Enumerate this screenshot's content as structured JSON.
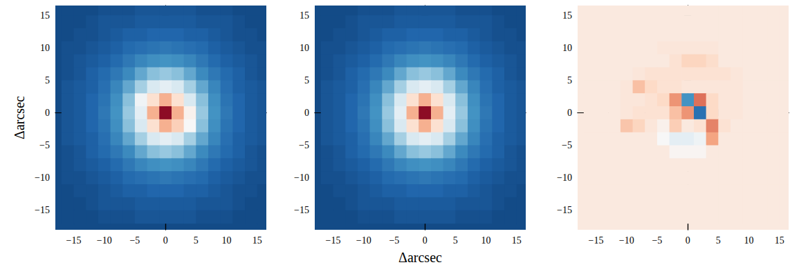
{
  "chart_data": [
    {
      "type": "heatmap",
      "ylabel": "Δarcsec",
      "xlim": [
        -18,
        16.5
      ],
      "ylim": [
        -18,
        16.5
      ],
      "xticks": [
        {
          "value": -15,
          "label": "−15"
        },
        {
          "value": -10,
          "label": "−10"
        },
        {
          "value": -5,
          "label": "−5"
        },
        0,
        5,
        10,
        15
      ],
      "yticks": [
        {
          "value": -15,
          "label": "−15"
        },
        {
          "value": -10,
          "label": "−10"
        },
        {
          "value": -5,
          "label": "−5"
        },
        0,
        5,
        10,
        15
      ],
      "color_range": [
        0,
        1
      ],
      "x": [
        -16,
        -14,
        -12,
        -10,
        -8,
        -6,
        -4,
        -2,
        0,
        2,
        4,
        6,
        8,
        10,
        12,
        14,
        16
      ],
      "y": [
        16,
        14,
        12,
        10,
        8,
        6,
        4,
        2,
        0,
        -2,
        -4,
        -6,
        -8,
        -10,
        -12,
        -14,
        -16
      ],
      "z": [
        [
          0.05,
          0.05,
          0.05,
          0.06,
          0.06,
          0.06,
          0.07,
          0.07,
          0.07,
          0.07,
          0.07,
          0.06,
          0.06,
          0.06,
          0.05,
          0.05,
          0.05
        ],
        [
          0.05,
          0.05,
          0.06,
          0.07,
          0.07,
          0.07,
          0.08,
          0.08,
          0.08,
          0.08,
          0.08,
          0.07,
          0.07,
          0.07,
          0.06,
          0.05,
          0.05
        ],
        [
          0.05,
          0.06,
          0.06,
          0.07,
          0.08,
          0.09,
          0.09,
          0.1,
          0.1,
          0.1,
          0.09,
          0.09,
          0.08,
          0.07,
          0.06,
          0.06,
          0.05
        ],
        [
          0.06,
          0.06,
          0.07,
          0.08,
          0.09,
          0.11,
          0.12,
          0.13,
          0.14,
          0.13,
          0.12,
          0.11,
          0.09,
          0.08,
          0.07,
          0.06,
          0.06
        ],
        [
          0.06,
          0.07,
          0.08,
          0.09,
          0.11,
          0.14,
          0.17,
          0.19,
          0.2,
          0.19,
          0.17,
          0.14,
          0.11,
          0.09,
          0.08,
          0.07,
          0.06
        ],
        [
          0.06,
          0.07,
          0.09,
          0.11,
          0.14,
          0.18,
          0.24,
          0.29,
          0.31,
          0.29,
          0.24,
          0.18,
          0.14,
          0.11,
          0.09,
          0.07,
          0.06
        ],
        [
          0.07,
          0.08,
          0.09,
          0.12,
          0.17,
          0.24,
          0.33,
          0.42,
          0.45,
          0.42,
          0.33,
          0.24,
          0.17,
          0.12,
          0.09,
          0.08,
          0.07
        ],
        [
          0.07,
          0.08,
          0.1,
          0.13,
          0.19,
          0.29,
          0.48,
          0.58,
          0.68,
          0.58,
          0.42,
          0.29,
          0.19,
          0.13,
          0.1,
          0.08,
          0.07
        ],
        [
          0.07,
          0.08,
          0.1,
          0.14,
          0.2,
          0.31,
          0.45,
          0.68,
          0.95,
          0.68,
          0.52,
          0.31,
          0.2,
          0.14,
          0.1,
          0.08,
          0.07
        ],
        [
          0.07,
          0.08,
          0.1,
          0.13,
          0.19,
          0.29,
          0.42,
          0.58,
          0.68,
          0.62,
          0.5,
          0.29,
          0.19,
          0.13,
          0.1,
          0.08,
          0.07
        ],
        [
          0.07,
          0.08,
          0.09,
          0.12,
          0.17,
          0.24,
          0.33,
          0.42,
          0.45,
          0.42,
          0.33,
          0.24,
          0.17,
          0.12,
          0.09,
          0.08,
          0.07
        ],
        [
          0.06,
          0.07,
          0.09,
          0.11,
          0.14,
          0.18,
          0.24,
          0.29,
          0.31,
          0.29,
          0.24,
          0.18,
          0.14,
          0.11,
          0.09,
          0.07,
          0.06
        ],
        [
          0.06,
          0.07,
          0.08,
          0.09,
          0.11,
          0.14,
          0.17,
          0.19,
          0.2,
          0.19,
          0.17,
          0.14,
          0.11,
          0.09,
          0.08,
          0.07,
          0.06
        ],
        [
          0.06,
          0.06,
          0.07,
          0.08,
          0.09,
          0.11,
          0.12,
          0.13,
          0.14,
          0.13,
          0.12,
          0.11,
          0.09,
          0.08,
          0.07,
          0.06,
          0.06
        ],
        [
          0.05,
          0.06,
          0.06,
          0.07,
          0.08,
          0.09,
          0.09,
          0.1,
          0.1,
          0.1,
          0.09,
          0.09,
          0.08,
          0.07,
          0.06,
          0.06,
          0.05
        ],
        [
          0.05,
          0.05,
          0.06,
          0.07,
          0.07,
          0.07,
          0.08,
          0.08,
          0.08,
          0.08,
          0.08,
          0.07,
          0.07,
          0.07,
          0.06,
          0.05,
          0.05
        ],
        [
          0.05,
          0.05,
          0.05,
          0.06,
          0.06,
          0.06,
          0.07,
          0.07,
          0.07,
          0.07,
          0.07,
          0.06,
          0.06,
          0.06,
          0.05,
          0.05,
          0.05
        ]
      ]
    },
    {
      "type": "heatmap",
      "xlabel": "Δarcsec",
      "xlim": [
        -18,
        16.5
      ],
      "ylim": [
        -18,
        16.5
      ],
      "xticks": [
        {
          "value": -15,
          "label": "−15"
        },
        {
          "value": -10,
          "label": "−10"
        },
        {
          "value": -5,
          "label": "−5"
        },
        0,
        5,
        10,
        15
      ],
      "yticks": [
        {
          "value": -15,
          "label": "−15"
        },
        {
          "value": -10,
          "label": "−10"
        },
        {
          "value": -5,
          "label": "−5"
        },
        0,
        5,
        10,
        15
      ],
      "color_range": [
        0,
        1
      ],
      "x": [
        -16,
        -14,
        -12,
        -10,
        -8,
        -6,
        -4,
        -2,
        0,
        2,
        4,
        6,
        8,
        10,
        12,
        14,
        16
      ],
      "y": [
        16,
        14,
        12,
        10,
        8,
        6,
        4,
        2,
        0,
        -2,
        -4,
        -6,
        -8,
        -10,
        -12,
        -14,
        -16
      ],
      "z": [
        [
          0.05,
          0.05,
          0.05,
          0.06,
          0.06,
          0.06,
          0.07,
          0.07,
          0.07,
          0.07,
          0.07,
          0.06,
          0.06,
          0.06,
          0.05,
          0.05,
          0.05
        ],
        [
          0.05,
          0.05,
          0.06,
          0.07,
          0.07,
          0.07,
          0.08,
          0.08,
          0.08,
          0.08,
          0.08,
          0.07,
          0.07,
          0.07,
          0.06,
          0.05,
          0.05
        ],
        [
          0.05,
          0.06,
          0.06,
          0.07,
          0.08,
          0.09,
          0.09,
          0.1,
          0.1,
          0.1,
          0.09,
          0.09,
          0.08,
          0.07,
          0.06,
          0.06,
          0.05
        ],
        [
          0.06,
          0.06,
          0.07,
          0.08,
          0.09,
          0.11,
          0.12,
          0.13,
          0.14,
          0.13,
          0.12,
          0.11,
          0.09,
          0.08,
          0.07,
          0.06,
          0.06
        ],
        [
          0.06,
          0.07,
          0.08,
          0.09,
          0.11,
          0.14,
          0.17,
          0.19,
          0.2,
          0.19,
          0.17,
          0.14,
          0.11,
          0.09,
          0.08,
          0.07,
          0.06
        ],
        [
          0.06,
          0.07,
          0.09,
          0.11,
          0.14,
          0.18,
          0.24,
          0.29,
          0.31,
          0.29,
          0.24,
          0.18,
          0.14,
          0.11,
          0.09,
          0.07,
          0.06
        ],
        [
          0.07,
          0.08,
          0.09,
          0.12,
          0.17,
          0.24,
          0.33,
          0.42,
          0.45,
          0.42,
          0.33,
          0.24,
          0.17,
          0.12,
          0.09,
          0.08,
          0.07
        ],
        [
          0.07,
          0.08,
          0.1,
          0.13,
          0.19,
          0.29,
          0.42,
          0.58,
          0.68,
          0.58,
          0.42,
          0.29,
          0.19,
          0.13,
          0.1,
          0.08,
          0.07
        ],
        [
          0.07,
          0.08,
          0.1,
          0.14,
          0.2,
          0.31,
          0.45,
          0.68,
          0.95,
          0.68,
          0.45,
          0.31,
          0.2,
          0.14,
          0.1,
          0.08,
          0.07
        ],
        [
          0.07,
          0.08,
          0.1,
          0.13,
          0.19,
          0.29,
          0.42,
          0.58,
          0.68,
          0.58,
          0.42,
          0.29,
          0.19,
          0.13,
          0.1,
          0.08,
          0.07
        ],
        [
          0.07,
          0.08,
          0.09,
          0.12,
          0.17,
          0.24,
          0.33,
          0.42,
          0.45,
          0.42,
          0.33,
          0.24,
          0.17,
          0.12,
          0.09,
          0.08,
          0.07
        ],
        [
          0.06,
          0.07,
          0.09,
          0.11,
          0.14,
          0.18,
          0.24,
          0.29,
          0.31,
          0.29,
          0.24,
          0.18,
          0.14,
          0.11,
          0.09,
          0.07,
          0.06
        ],
        [
          0.06,
          0.07,
          0.08,
          0.09,
          0.11,
          0.14,
          0.17,
          0.19,
          0.2,
          0.19,
          0.17,
          0.14,
          0.11,
          0.09,
          0.08,
          0.07,
          0.06
        ],
        [
          0.06,
          0.06,
          0.07,
          0.08,
          0.09,
          0.11,
          0.12,
          0.13,
          0.14,
          0.13,
          0.12,
          0.11,
          0.09,
          0.08,
          0.07,
          0.06,
          0.06
        ],
        [
          0.05,
          0.06,
          0.06,
          0.07,
          0.08,
          0.09,
          0.09,
          0.1,
          0.1,
          0.1,
          0.09,
          0.09,
          0.08,
          0.07,
          0.06,
          0.06,
          0.05
        ],
        [
          0.05,
          0.05,
          0.06,
          0.07,
          0.07,
          0.07,
          0.08,
          0.08,
          0.08,
          0.08,
          0.08,
          0.07,
          0.07,
          0.07,
          0.06,
          0.05,
          0.05
        ],
        [
          0.05,
          0.05,
          0.05,
          0.06,
          0.06,
          0.06,
          0.07,
          0.07,
          0.07,
          0.07,
          0.07,
          0.06,
          0.06,
          0.06,
          0.05,
          0.05,
          0.05
        ]
      ]
    },
    {
      "type": "heatmap",
      "xlim": [
        -18,
        16.5
      ],
      "ylim": [
        -18,
        16.5
      ],
      "xticks": [
        {
          "value": -15,
          "label": "−15"
        },
        {
          "value": -10,
          "label": "−10"
        },
        {
          "value": -5,
          "label": "−5"
        },
        0,
        5,
        10,
        15
      ],
      "yticks": [
        {
          "value": -15,
          "label": "−15"
        },
        {
          "value": -10,
          "label": "−10"
        },
        {
          "value": -5,
          "label": "−5"
        },
        0,
        5,
        10,
        15
      ],
      "color_range": [
        -1,
        1
      ],
      "x": [
        -16,
        -14,
        -12,
        -10,
        -8,
        -6,
        -4,
        -2,
        0,
        2,
        4,
        6,
        8,
        10,
        12,
        14,
        16
      ],
      "y": [
        16,
        14,
        12,
        10,
        8,
        6,
        4,
        2,
        0,
        -2,
        -4,
        -6,
        -8,
        -10,
        -12,
        -14,
        -16
      ],
      "z": [
        [
          0.1,
          0.1,
          0.1,
          0.1,
          0.1,
          0.1,
          0.1,
          0.1,
          0.1,
          0.1,
          0.1,
          0.1,
          0.1,
          0.1,
          0.1,
          0.1,
          0.1
        ],
        [
          0.1,
          0.1,
          0.1,
          0.1,
          0.1,
          0.1,
          0.1,
          0.1,
          0.1,
          0.1,
          0.1,
          0.1,
          0.1,
          0.1,
          0.1,
          0.1,
          0.1
        ],
        [
          0.1,
          0.1,
          0.1,
          0.1,
          0.1,
          0.1,
          0.1,
          0.1,
          0.1,
          0.1,
          0.1,
          0.1,
          0.1,
          0.1,
          0.1,
          0.1,
          0.1
        ],
        [
          0.1,
          0.1,
          0.1,
          0.1,
          0.1,
          0.1,
          0.12,
          0.12,
          0.12,
          0.12,
          0.12,
          0.1,
          0.1,
          0.1,
          0.1,
          0.1,
          0.1
        ],
        [
          0.1,
          0.1,
          0.1,
          0.1,
          0.1,
          0.1,
          0.1,
          0.15,
          0.22,
          0.22,
          0.18,
          0.1,
          0.1,
          0.1,
          0.1,
          0.1,
          0.1
        ],
        [
          0.1,
          0.1,
          0.1,
          0.1,
          0.12,
          0.15,
          0.15,
          0.15,
          0.15,
          0.15,
          0.15,
          0.15,
          0.12,
          0.1,
          0.1,
          0.1,
          0.1
        ],
        [
          0.1,
          0.1,
          0.1,
          0.12,
          0.3,
          0.2,
          0.15,
          0.15,
          0.12,
          0.12,
          0.12,
          0.12,
          0.12,
          0.1,
          0.1,
          0.1,
          0.1
        ],
        [
          0.1,
          0.1,
          0.1,
          0.12,
          0.12,
          0.15,
          0.2,
          0.45,
          -0.6,
          0.55,
          0.2,
          0.12,
          0.12,
          0.1,
          0.1,
          0.1,
          0.1
        ],
        [
          0.1,
          0.1,
          0.1,
          0.12,
          0.15,
          0.15,
          0.15,
          0.3,
          0.45,
          -0.75,
          0.2,
          0.12,
          0.12,
          0.1,
          0.1,
          0.1,
          0.1
        ],
        [
          0.1,
          0.1,
          0.1,
          0.28,
          0.22,
          0.12,
          0.05,
          0.25,
          0.1,
          0.15,
          0.5,
          0.15,
          0.1,
          0.1,
          0.1,
          0.1,
          0.1
        ],
        [
          0.1,
          0.1,
          0.1,
          0.1,
          0.1,
          0.1,
          0.0,
          -0.1,
          -0.1,
          -0.05,
          0.4,
          0.1,
          0.1,
          0.1,
          0.1,
          0.1,
          0.1
        ],
        [
          0.1,
          0.1,
          0.1,
          0.1,
          0.1,
          0.1,
          0.1,
          0.02,
          0.02,
          0.02,
          0.1,
          0.1,
          0.1,
          0.1,
          0.1,
          0.1,
          0.1
        ],
        [
          0.1,
          0.1,
          0.1,
          0.1,
          0.1,
          0.1,
          0.1,
          0.1,
          0.1,
          0.1,
          0.1,
          0.1,
          0.1,
          0.1,
          0.1,
          0.1,
          0.1
        ],
        [
          0.1,
          0.1,
          0.1,
          0.1,
          0.1,
          0.1,
          0.1,
          0.1,
          0.1,
          0.1,
          0.1,
          0.1,
          0.1,
          0.1,
          0.1,
          0.1,
          0.1
        ],
        [
          0.1,
          0.1,
          0.1,
          0.1,
          0.1,
          0.1,
          0.1,
          0.1,
          0.1,
          0.1,
          0.1,
          0.1,
          0.1,
          0.1,
          0.1,
          0.1,
          0.1
        ],
        [
          0.1,
          0.1,
          0.1,
          0.1,
          0.1,
          0.1,
          0.1,
          0.1,
          0.1,
          0.1,
          0.1,
          0.1,
          0.1,
          0.1,
          0.1,
          0.1,
          0.1
        ],
        [
          0.1,
          0.1,
          0.1,
          0.1,
          0.1,
          0.1,
          0.1,
          0.1,
          0.1,
          0.1,
          0.1,
          0.1,
          0.1,
          0.1,
          0.1,
          0.1,
          0.1
        ]
      ]
    }
  ]
}
